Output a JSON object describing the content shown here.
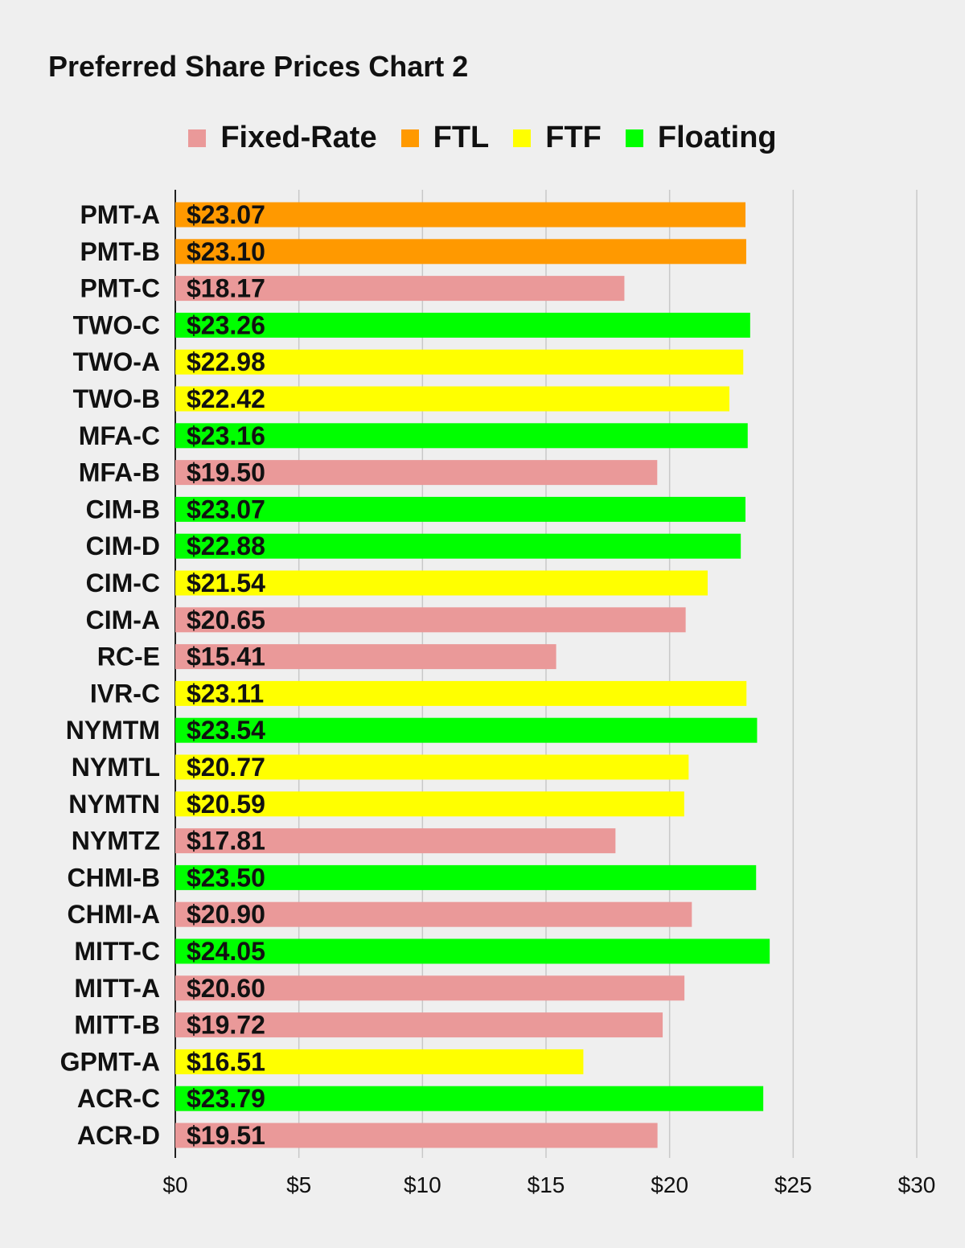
{
  "chart_data": {
    "type": "bar",
    "orientation": "horizontal",
    "title": "Preferred Share Prices Chart 2",
    "legend": [
      {
        "name": "Fixed-Rate",
        "color": "#ea9999"
      },
      {
        "name": "FTL",
        "color": "#ff9900"
      },
      {
        "name": "FTF",
        "color": "#ffff00"
      },
      {
        "name": "Floating",
        "color": "#00ff00"
      }
    ],
    "legend_position": "top",
    "xlim": [
      0,
      30
    ],
    "x_ticks": [
      0,
      5,
      10,
      15,
      20,
      25,
      30
    ],
    "x_tick_labels": [
      "$0",
      "$5",
      "$10",
      "$15",
      "$20",
      "$25",
      "$30"
    ],
    "grid": "vertical",
    "bars": [
      {
        "category": "PMT-A",
        "value": 23.07,
        "label": "$23.07",
        "type": "FTL"
      },
      {
        "category": "PMT-B",
        "value": 23.1,
        "label": "$23.10",
        "type": "FTL"
      },
      {
        "category": "PMT-C",
        "value": 18.17,
        "label": "$18.17",
        "type": "Fixed-Rate"
      },
      {
        "category": "TWO-C",
        "value": 23.26,
        "label": "$23.26",
        "type": "Floating"
      },
      {
        "category": "TWO-A",
        "value": 22.98,
        "label": "$22.98",
        "type": "FTF"
      },
      {
        "category": "TWO-B",
        "value": 22.42,
        "label": "$22.42",
        "type": "FTF"
      },
      {
        "category": "MFA-C",
        "value": 23.16,
        "label": "$23.16",
        "type": "Floating"
      },
      {
        "category": "MFA-B",
        "value": 19.5,
        "label": "$19.50",
        "type": "Fixed-Rate"
      },
      {
        "category": "CIM-B",
        "value": 23.07,
        "label": "$23.07",
        "type": "Floating"
      },
      {
        "category": "CIM-D",
        "value": 22.88,
        "label": "$22.88",
        "type": "Floating"
      },
      {
        "category": "CIM-C",
        "value": 21.54,
        "label": "$21.54",
        "type": "FTF"
      },
      {
        "category": "CIM-A",
        "value": 20.65,
        "label": "$20.65",
        "type": "Fixed-Rate"
      },
      {
        "category": "RC-E",
        "value": 15.41,
        "label": "$15.41",
        "type": "Fixed-Rate"
      },
      {
        "category": "IVR-C",
        "value": 23.11,
        "label": "$23.11",
        "type": "FTF"
      },
      {
        "category": "NYMTM",
        "value": 23.54,
        "label": "$23.54",
        "type": "Floating"
      },
      {
        "category": "NYMTL",
        "value": 20.77,
        "label": "$20.77",
        "type": "FTF"
      },
      {
        "category": "NYMTN",
        "value": 20.59,
        "label": "$20.59",
        "type": "FTF"
      },
      {
        "category": "NYMTZ",
        "value": 17.81,
        "label": "$17.81",
        "type": "Fixed-Rate"
      },
      {
        "category": "CHMI-B",
        "value": 23.5,
        "label": "$23.50",
        "type": "Floating"
      },
      {
        "category": "CHMI-A",
        "value": 20.9,
        "label": "$20.90",
        "type": "Fixed-Rate"
      },
      {
        "category": "MITT-C",
        "value": 24.05,
        "label": "$24.05",
        "type": "Floating"
      },
      {
        "category": "MITT-A",
        "value": 20.6,
        "label": "$20.60",
        "type": "Fixed-Rate"
      },
      {
        "category": "MITT-B",
        "value": 19.72,
        "label": "$19.72",
        "type": "Fixed-Rate"
      },
      {
        "category": "GPMT-A",
        "value": 16.51,
        "label": "$16.51",
        "type": "FTF"
      },
      {
        "category": "ACR-C",
        "value": 23.79,
        "label": "$23.79",
        "type": "Floating"
      },
      {
        "category": "ACR-D",
        "value": 19.51,
        "label": "$19.51",
        "type": "Fixed-Rate"
      }
    ]
  }
}
